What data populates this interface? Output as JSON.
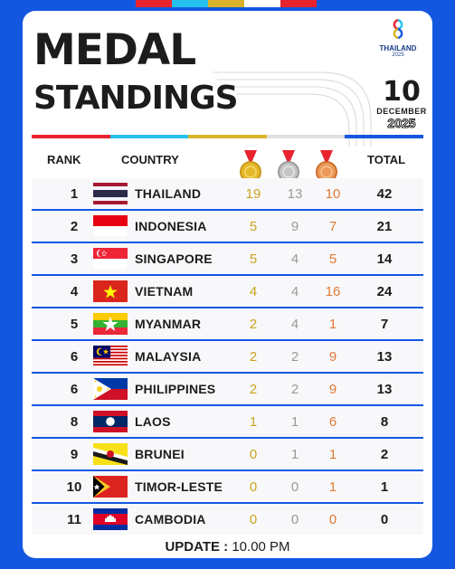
{
  "header": {
    "title_line1": "MEDAL",
    "title_line2": "STANDINGS",
    "logo": {
      "brand": "THAILAND",
      "year": "2025",
      "icon": "games-emblem-icon"
    },
    "date": {
      "day": "10",
      "month": "DECEMBER",
      "year": "2025"
    }
  },
  "columns": {
    "rank": "RANK",
    "country": "COUNTRY",
    "total": "TOTAL",
    "gold_icon": "gold-medal-icon",
    "silver_icon": "silver-medal-icon",
    "bronze_icon": "bronze-medal-icon"
  },
  "colors": {
    "background": "#1357e0",
    "gold": "#c9a31b",
    "silver": "#9a9a9a",
    "bronze": "#e07a35",
    "accent_red": "#e8232f",
    "accent_cyan": "#25c1ee",
    "accent_gold": "#d8b32a"
  },
  "rows": [
    {
      "rank": "1",
      "country": "THAILAND",
      "flag": "thailand-flag-icon",
      "gold": "19",
      "silver": "13",
      "bronze": "10",
      "total": "42"
    },
    {
      "rank": "2",
      "country": "INDONESIA",
      "flag": "indonesia-flag-icon",
      "gold": "5",
      "silver": "9",
      "bronze": "7",
      "total": "21"
    },
    {
      "rank": "3",
      "country": "SINGAPORE",
      "flag": "singapore-flag-icon",
      "gold": "5",
      "silver": "4",
      "bronze": "5",
      "total": "14"
    },
    {
      "rank": "4",
      "country": "VIETNAM",
      "flag": "vietnam-flag-icon",
      "gold": "4",
      "silver": "4",
      "bronze": "16",
      "total": "24"
    },
    {
      "rank": "5",
      "country": "MYANMAR",
      "flag": "myanmar-flag-icon",
      "gold": "2",
      "silver": "4",
      "bronze": "1",
      "total": "7"
    },
    {
      "rank": "6",
      "country": "MALAYSIA",
      "flag": "malaysia-flag-icon",
      "gold": "2",
      "silver": "2",
      "bronze": "9",
      "total": "13"
    },
    {
      "rank": "6",
      "country": "PHILIPPINES",
      "flag": "philippines-flag-icon",
      "gold": "2",
      "silver": "2",
      "bronze": "9",
      "total": "13"
    },
    {
      "rank": "8",
      "country": "LAOS",
      "flag": "laos-flag-icon",
      "gold": "1",
      "silver": "1",
      "bronze": "6",
      "total": "8"
    },
    {
      "rank": "9",
      "country": "BRUNEI",
      "flag": "brunei-flag-icon",
      "gold": "0",
      "silver": "1",
      "bronze": "1",
      "total": "2"
    },
    {
      "rank": "10",
      "country": "TIMOR-LESTE",
      "flag": "timor-leste-flag-icon",
      "gold": "0",
      "silver": "0",
      "bronze": "1",
      "total": "1"
    },
    {
      "rank": "11",
      "country": "CAMBODIA",
      "flag": "cambodia-flag-icon",
      "gold": "0",
      "silver": "0",
      "bronze": "0",
      "total": "0"
    }
  ],
  "footer": {
    "label": "UPDATE :",
    "time": "10.00 PM"
  }
}
